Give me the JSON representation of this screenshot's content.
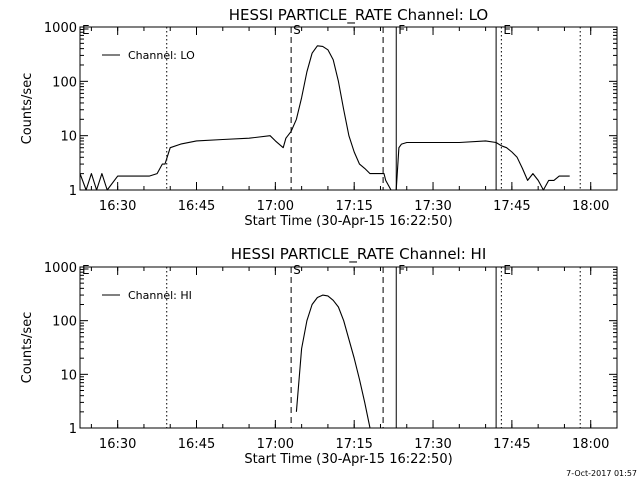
{
  "footer_text": "7-Oct-2017 01:57",
  "chart_data": [
    {
      "type": "line",
      "title": "HESSI PARTICLE_RATE Channel: LO",
      "xlabel": "Start Time (30-Apr-15 16:22:50)",
      "ylabel": "Counts/sec",
      "yscale": "log",
      "ylim": [
        1,
        1000
      ],
      "xlim": [
        "16:22:50",
        "18:05:00"
      ],
      "x_ticks": [
        "16:30",
        "16:45",
        "17:00",
        "17:15",
        "17:30",
        "17:45",
        "18:00"
      ],
      "y_ticks": [
        "1",
        "10",
        "100",
        "1000"
      ],
      "legend": {
        "entries": [
          "Channel: LO"
        ],
        "position": "top-left"
      },
      "series": [
        {
          "name": "Channel: LO",
          "x": [
            "16:22:50",
            "16:24:00",
            "16:25:00",
            "16:26:00",
            "16:27:00",
            "16:28:00",
            "16:30:00",
            "16:32:00",
            "16:34:00",
            "16:36:00",
            "16:37:30",
            "16:38:30",
            "16:39:00",
            "16:40:00",
            "16:42:00",
            "16:45:00",
            "16:50:00",
            "16:55:00",
            "16:59:00",
            "17:00:00",
            "17:01:30",
            "17:02:00",
            "17:03:00",
            "17:04:00",
            "17:05:00",
            "17:06:00",
            "17:07:00",
            "17:08:00",
            "17:09:00",
            "17:10:00",
            "17:11:00",
            "17:12:00",
            "17:13:00",
            "17:14:00",
            "17:15:00",
            "17:16:00",
            "17:17:00",
            "17:18:00",
            "17:19:00",
            "17:20:00",
            "17:20:40",
            "17:21:00",
            "17:22:00",
            "17:23:00",
            "17:23:30",
            "17:24:00",
            "17:25:00",
            "17:30:00",
            "17:35:00",
            "17:40:00",
            "17:42:00",
            "17:43:00",
            "17:44:00",
            "17:45:00",
            "17:46:00",
            "17:47:00",
            "17:48:00",
            "17:49:00",
            "17:50:00",
            "17:51:00",
            "17:52:00",
            "17:53:00",
            "17:54:00",
            "17:55:00",
            "17:56:00"
          ],
          "y": [
            2,
            1,
            2,
            1,
            2,
            1,
            1.8,
            1.8,
            1.8,
            1.8,
            2,
            3,
            3,
            6,
            7,
            8,
            8.5,
            9,
            10,
            8,
            6,
            9,
            12,
            20,
            50,
            150,
            330,
            450,
            440,
            380,
            250,
            100,
            30,
            10,
            5,
            3,
            2.5,
            2,
            2,
            2,
            2,
            1.5,
            1,
            1,
            6,
            7,
            7.5,
            7.5,
            7.5,
            8,
            7.5,
            6.5,
            6,
            5,
            4,
            2.5,
            1.5,
            2,
            1.5,
            1,
            1.5,
            1.5,
            1.8,
            1.8,
            1.8
          ]
        }
      ],
      "markers": [
        {
          "time": "16:39:20",
          "style": "dotted",
          "label": ""
        },
        {
          "time": "17:03:00",
          "style": "dashed",
          "label": "S"
        },
        {
          "time": "17:20:30",
          "style": "dashed",
          "label": ""
        },
        {
          "time": "17:23:00",
          "style": "solid",
          "label": "F"
        },
        {
          "time": "17:42:00",
          "style": "solid",
          "label": ""
        },
        {
          "time": "17:43:00",
          "style": "dotted",
          "label": "E"
        },
        {
          "time": "17:58:00",
          "style": "dotted",
          "label": ""
        }
      ],
      "start_marker_label": "E"
    },
    {
      "type": "line",
      "title": "HESSI PARTICLE_RATE Channel: HI",
      "xlabel": "Start Time (30-Apr-15 16:22:50)",
      "ylabel": "Counts/sec",
      "yscale": "log",
      "ylim": [
        1,
        1000
      ],
      "xlim": [
        "16:22:50",
        "18:05:00"
      ],
      "x_ticks": [
        "16:30",
        "16:45",
        "17:00",
        "17:15",
        "17:30",
        "17:45",
        "18:00"
      ],
      "y_ticks": [
        "1",
        "10",
        "100",
        "1000"
      ],
      "legend": {
        "entries": [
          "Channel: HI"
        ],
        "position": "top-left"
      },
      "series": [
        {
          "name": "Channel: HI",
          "x": [
            "17:04:00",
            "17:05:00",
            "17:06:00",
            "17:07:00",
            "17:08:00",
            "17:09:00",
            "17:10:00",
            "17:11:00",
            "17:12:00",
            "17:13:00",
            "17:14:00",
            "17:15:00",
            "17:16:00",
            "17:17:00",
            "17:18:00"
          ],
          "y": [
            2,
            30,
            100,
            200,
            270,
            300,
            290,
            240,
            180,
            100,
            45,
            20,
            8,
            3,
            1
          ]
        }
      ],
      "markers": [
        {
          "time": "16:39:20",
          "style": "dotted",
          "label": ""
        },
        {
          "time": "17:03:00",
          "style": "dashed",
          "label": "S"
        },
        {
          "time": "17:20:30",
          "style": "dashed",
          "label": ""
        },
        {
          "time": "17:23:00",
          "style": "solid",
          "label": "F"
        },
        {
          "time": "17:42:00",
          "style": "solid",
          "label": ""
        },
        {
          "time": "17:43:00",
          "style": "dotted",
          "label": "E"
        },
        {
          "time": "17:58:00",
          "style": "dotted",
          "label": ""
        }
      ],
      "start_marker_label": "E"
    }
  ]
}
